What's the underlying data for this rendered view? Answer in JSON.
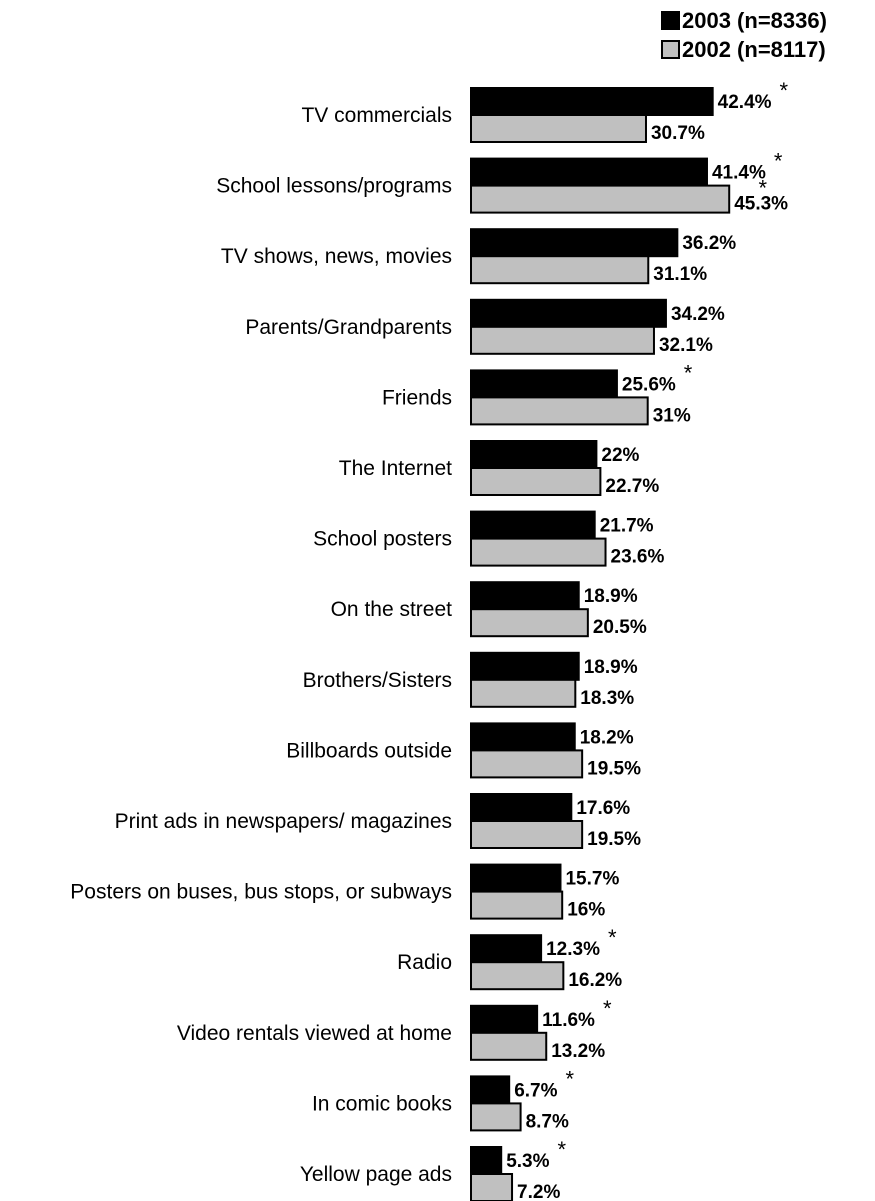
{
  "chart_data": {
    "type": "bar",
    "orientation": "horizontal",
    "categories": [
      "TV commercials",
      "School lessons/programs",
      "TV shows, news, movies",
      "Parents/Grandparents",
      "Friends",
      "The Internet",
      "School posters",
      "On the street",
      "Brothers/Sisters",
      "Billboards outside",
      "Print ads in newspapers/ magazines",
      "Posters on buses, bus stops, or subways",
      "Radio",
      "Video rentals viewed at home",
      "In comic books",
      "Yellow page ads"
    ],
    "series": [
      {
        "name": "2003 (n=8336)",
        "color": "#000000",
        "values": [
          42.4,
          41.4,
          36.2,
          34.2,
          25.6,
          22,
          21.7,
          18.9,
          18.9,
          18.2,
          17.6,
          15.7,
          12.3,
          11.6,
          6.7,
          5.3
        ],
        "labels": [
          "42.4%",
          "41.4%",
          "36.2%",
          "34.2%",
          "25.6%",
          "22%",
          "21.7%",
          "18.9%",
          "18.9%",
          "18.2%",
          "17.6%",
          "15.7%",
          "12.3%",
          "11.6%",
          "6.7%",
          "5.3%"
        ],
        "starred": [
          true,
          true,
          false,
          false,
          true,
          false,
          false,
          false,
          false,
          false,
          false,
          false,
          true,
          true,
          true,
          true
        ]
      },
      {
        "name": "2002 (n=8117)",
        "color": "#c0c0c0",
        "values": [
          30.7,
          45.3,
          31.1,
          32.1,
          31,
          22.7,
          23.6,
          20.5,
          18.3,
          19.5,
          19.5,
          16,
          16.2,
          13.2,
          8.7,
          7.2
        ],
        "labels": [
          "30.7%",
          "45.3%",
          "31.1%",
          "32.1%",
          "31%",
          "22.7%",
          "23.6%",
          "20.5%",
          "18.3%",
          "19.5%",
          "19.5%",
          "16%",
          "16.2%",
          "13.2%",
          "8.7%",
          "7.2%"
        ],
        "starred": [
          false,
          true,
          false,
          false,
          false,
          false,
          false,
          false,
          false,
          false,
          false,
          false,
          false,
          false,
          false,
          false
        ]
      }
    ],
    "star_symbol": "*",
    "legend": {
      "position": "top-right"
    },
    "xlim": [
      0,
      50
    ],
    "grid": false,
    "title": "",
    "xlabel": "",
    "ylabel": ""
  }
}
